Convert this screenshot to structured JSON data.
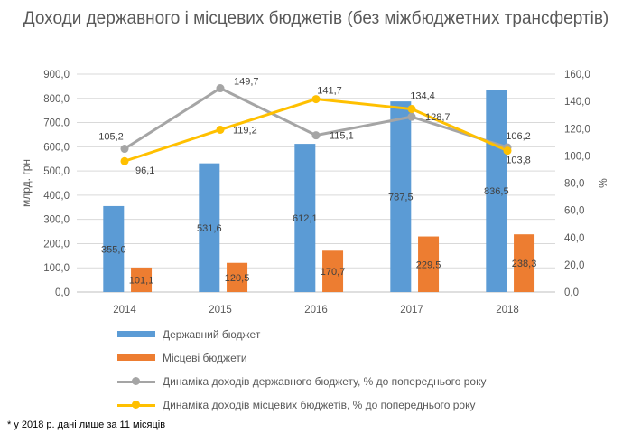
{
  "chart_data": {
    "type": "bar",
    "title": "Доходи державного і місцевих бюджетів (без міжбюджетних трансфертів)",
    "categories": [
      "2014",
      "2015",
      "2016",
      "2017",
      "2018"
    ],
    "ylabel": "млрд. грн",
    "y2label": "%",
    "ylim": [
      0,
      900
    ],
    "y2lim": [
      0,
      160
    ],
    "y_ticks": [
      "0,0",
      "100,0",
      "200,0",
      "300,0",
      "400,0",
      "500,0",
      "600,0",
      "700,0",
      "800,0",
      "900,0"
    ],
    "y2_ticks": [
      "0,0",
      "20,0",
      "40,0",
      "60,0",
      "80,0",
      "100,0",
      "120,0",
      "140,0",
      "160,0"
    ],
    "grid": true,
    "legend_position": "bottom",
    "series": [
      {
        "name": "Державний бюджет",
        "kind": "bar",
        "axis": "left",
        "color": "#5B9BD5",
        "values": [
          355.0,
          531.6,
          612.1,
          787.5,
          836.5
        ],
        "labels": [
          "355,0",
          "531,6",
          "612,1",
          "787,5",
          "836,5"
        ]
      },
      {
        "name": "Місцеві бюджети",
        "kind": "bar",
        "axis": "left",
        "color": "#ED7D31",
        "values": [
          101.1,
          120.5,
          170.7,
          229.5,
          238.3
        ],
        "labels": [
          "101,1",
          "120,5",
          "170,7",
          "229,5",
          "238,3"
        ]
      },
      {
        "name": "Динаміка доходів державного бюджету, % до попереднього року",
        "kind": "line",
        "axis": "right",
        "color": "#A5A5A5",
        "values": [
          105.2,
          149.7,
          115.1,
          128.7,
          106.2
        ],
        "labels": [
          "105,2",
          "149,7",
          "115,1",
          "128,7",
          "106,2"
        ]
      },
      {
        "name": "Динаміка доходів місцевих бюджетів, % до попереднього року",
        "kind": "line",
        "axis": "right",
        "color": "#FFC000",
        "values": [
          96.1,
          119.2,
          141.7,
          134.4,
          103.8
        ],
        "labels": [
          "96,1",
          "119,2",
          "141,7",
          "134,4",
          "103,8"
        ]
      }
    ]
  },
  "footnote": "* у 2018 р. дані лише за 11 місяців"
}
